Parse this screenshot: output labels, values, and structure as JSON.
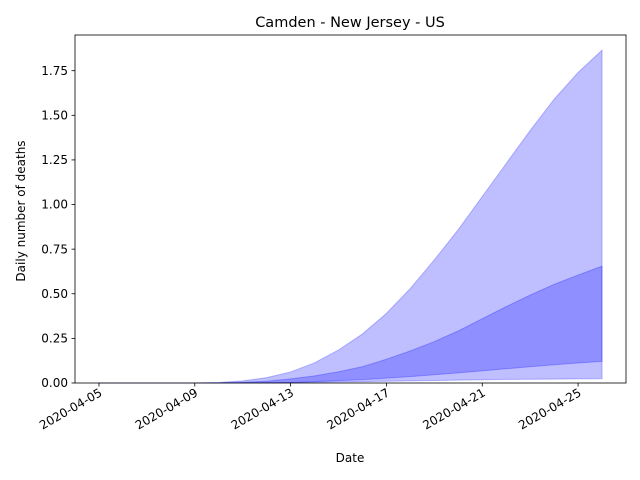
{
  "chart_data": {
    "type": "area",
    "title": "Camden - New Jersey - US",
    "xlabel": "Date",
    "ylabel": "Daily number of deaths",
    "x": [
      "2020-04-05",
      "2020-04-06",
      "2020-04-07",
      "2020-04-08",
      "2020-04-09",
      "2020-04-10",
      "2020-04-11",
      "2020-04-12",
      "2020-04-13",
      "2020-04-14",
      "2020-04-15",
      "2020-04-16",
      "2020-04-17",
      "2020-04-18",
      "2020-04-19",
      "2020-04-20",
      "2020-04-21",
      "2020-04-22",
      "2020-04-23",
      "2020-04-24",
      "2020-04-25",
      "2020-04-26"
    ],
    "xlim": [
      "2020-04-04",
      "2020-04-27"
    ],
    "ylim": [
      0,
      1.95
    ],
    "x_ticks": [
      "2020-04-05",
      "2020-04-09",
      "2020-04-13",
      "2020-04-17",
      "2020-04-21",
      "2020-04-25"
    ],
    "y_ticks": [
      0.0,
      0.25,
      0.5,
      0.75,
      1.0,
      1.25,
      1.5,
      1.75
    ],
    "y_tick_labels": [
      "0.00",
      "0.25",
      "0.50",
      "0.75",
      "1.00",
      "1.25",
      "1.50",
      "1.75"
    ],
    "grid": false,
    "series": [
      {
        "kind": "outer_band",
        "color": "#0000ff",
        "alpha": 0.25,
        "lower": [
          0,
          0,
          0,
          0,
          0,
          0,
          0,
          0.001,
          0.002,
          0.004,
          0.006,
          0.008,
          0.01,
          0.012,
          0.014,
          0.016,
          0.018,
          0.02,
          0.021,
          0.022,
          0.023,
          0.024
        ],
        "upper": [
          0,
          0,
          0,
          0,
          0,
          0.003,
          0.012,
          0.03,
          0.062,
          0.113,
          0.185,
          0.275,
          0.39,
          0.53,
          0.69,
          0.86,
          1.045,
          1.23,
          1.415,
          1.59,
          1.74,
          1.865
        ]
      },
      {
        "kind": "inner_band",
        "color": "#0000ff",
        "alpha": 0.25,
        "lower": [
          0,
          0,
          0,
          0,
          0,
          0,
          0,
          0.001,
          0.003,
          0.008,
          0.013,
          0.019,
          0.027,
          0.036,
          0.046,
          0.057,
          0.068,
          0.08,
          0.091,
          0.102,
          0.112,
          0.121
        ],
        "upper": [
          0,
          0,
          0,
          0,
          0,
          0.001,
          0.004,
          0.01,
          0.023,
          0.04,
          0.063,
          0.092,
          0.133,
          0.18,
          0.232,
          0.292,
          0.36,
          0.428,
          0.493,
          0.553,
          0.605,
          0.655
        ]
      }
    ]
  }
}
